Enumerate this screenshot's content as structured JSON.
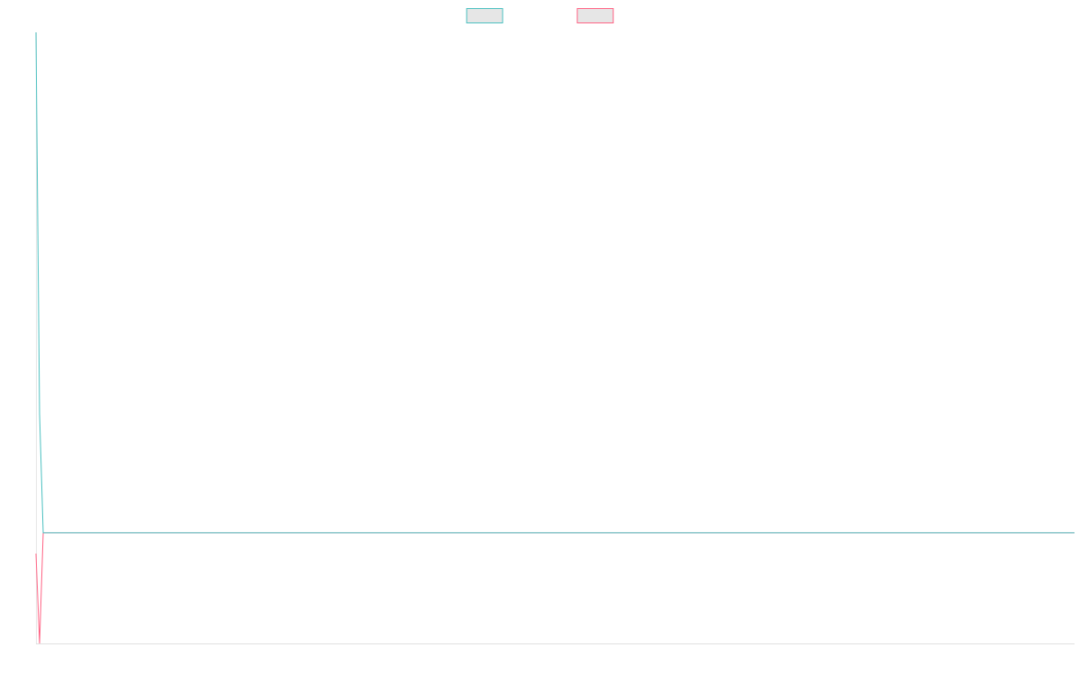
{
  "chart_data": {
    "type": "line",
    "x": [
      0,
      1,
      2,
      288
    ],
    "xlim": [
      0,
      288
    ],
    "ylim": [
      0,
      100
    ],
    "series": [
      {
        "color": "#4bc0c0",
        "values": [
          100,
          37.6,
          18.1,
          18.1
        ]
      },
      {
        "color": "#ff6384",
        "values": [
          14.7,
          0,
          18.1,
          18.1
        ]
      }
    ]
  }
}
